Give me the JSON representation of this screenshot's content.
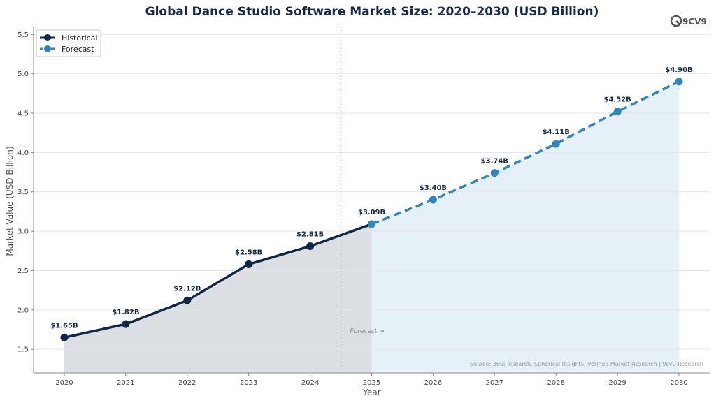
{
  "chart_data": {
    "type": "line",
    "title": "Global Dance Studio Software Market Size: 2020–2030 (USD Billion)",
    "xlabel": "Year",
    "ylabel": "Market Value (USD Billion)",
    "x": [
      2020,
      2021,
      2022,
      2023,
      2024,
      2025,
      2026,
      2027,
      2028,
      2029,
      2030
    ],
    "xlim": [
      2019.5,
      2030.5
    ],
    "ylim": [
      1.2,
      5.6
    ],
    "yticks": [
      1.5,
      2.0,
      2.5,
      3.0,
      3.5,
      4.0,
      4.5,
      5.0,
      5.5
    ],
    "grid": true,
    "legend_position": "top-left",
    "series": [
      {
        "name": "Historical",
        "color": "#0f2748",
        "style": "solid",
        "x": [
          2020,
          2021,
          2022,
          2023,
          2024,
          2025
        ],
        "values": [
          1.65,
          1.82,
          2.12,
          2.58,
          2.81,
          3.09
        ],
        "labels": [
          "$1.65B",
          "$1.82B",
          "$2.12B",
          "$2.58B",
          "$2.81B",
          "$3.09B"
        ]
      },
      {
        "name": "Forecast",
        "color": "#2e86c1",
        "style": "dashed",
        "x": [
          2025,
          2026,
          2027,
          2028,
          2029,
          2030
        ],
        "values": [
          3.09,
          3.4,
          3.74,
          4.11,
          4.52,
          4.9
        ],
        "labels": [
          "$3.09B",
          "$3.40B",
          "$3.74B",
          "$4.11B",
          "$4.52B",
          "$4.90B"
        ]
      }
    ],
    "forecast_divider_x": 2024.5,
    "annotation": "Forecast →",
    "source": "Source: 360iResearch, Spherical Insights, Verified Market Research | 9cv9 Research",
    "logo_text": "9CV9"
  }
}
